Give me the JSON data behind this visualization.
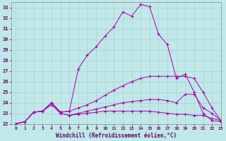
{
  "xlabel": "Windchill (Refroidissement éolien,°C)",
  "xlim": [
    -0.5,
    23
  ],
  "ylim": [
    22,
    33.5
  ],
  "yticks": [
    22,
    23,
    24,
    25,
    26,
    27,
    28,
    29,
    30,
    31,
    32,
    33
  ],
  "xticks": [
    0,
    1,
    2,
    3,
    4,
    5,
    6,
    7,
    8,
    9,
    10,
    11,
    12,
    13,
    14,
    15,
    16,
    17,
    18,
    19,
    20,
    21,
    22,
    23
  ],
  "background_color": "#c0e8e8",
  "grid_color": "#a8d0d0",
  "line_color": "#aa00aa",
  "lines": [
    {
      "x": [
        0,
        1,
        2,
        3,
        4,
        5,
        6,
        7,
        8,
        9,
        10,
        11,
        12,
        13,
        14,
        15,
        16,
        17,
        18,
        19,
        20,
        21,
        22,
        23
      ],
      "y": [
        22.0,
        22.2,
        23.1,
        23.2,
        24.0,
        23.1,
        23.2,
        27.2,
        28.5,
        29.3,
        30.3,
        31.2,
        32.6,
        32.2,
        33.3,
        33.1,
        30.5,
        29.5,
        26.3,
        26.7,
        25.0,
        23.0,
        22.3,
        22.2
      ]
    },
    {
      "x": [
        0,
        1,
        2,
        3,
        4,
        5,
        6,
        7,
        8,
        9,
        10,
        11,
        12,
        13,
        14,
        15,
        16,
        17,
        18,
        19,
        20,
        21,
        22,
        23
      ],
      "y": [
        22.0,
        22.2,
        23.1,
        23.2,
        24.0,
        23.1,
        23.2,
        23.5,
        23.8,
        24.2,
        24.7,
        25.2,
        25.6,
        26.0,
        26.3,
        26.5,
        26.5,
        26.5,
        26.5,
        26.5,
        26.3,
        25.0,
        23.5,
        22.3
      ]
    },
    {
      "x": [
        0,
        1,
        2,
        3,
        4,
        5,
        6,
        7,
        8,
        9,
        10,
        11,
        12,
        13,
        14,
        15,
        16,
        17,
        18,
        19,
        20,
        21,
        22,
        23
      ],
      "y": [
        22.0,
        22.2,
        23.1,
        23.2,
        24.0,
        23.0,
        22.8,
        23.0,
        23.2,
        23.4,
        23.6,
        23.8,
        24.0,
        24.1,
        24.2,
        24.3,
        24.3,
        24.2,
        24.0,
        24.8,
        24.8,
        23.5,
        23.0,
        22.3
      ]
    },
    {
      "x": [
        0,
        1,
        2,
        3,
        4,
        5,
        6,
        7,
        8,
        9,
        10,
        11,
        12,
        13,
        14,
        15,
        16,
        17,
        18,
        19,
        20,
        21,
        22,
        23
      ],
      "y": [
        22.0,
        22.2,
        23.1,
        23.2,
        23.8,
        23.0,
        22.8,
        22.9,
        23.0,
        23.1,
        23.2,
        23.2,
        23.2,
        23.2,
        23.2,
        23.2,
        23.1,
        23.0,
        22.9,
        22.9,
        22.8,
        22.8,
        22.5,
        22.3
      ]
    }
  ]
}
